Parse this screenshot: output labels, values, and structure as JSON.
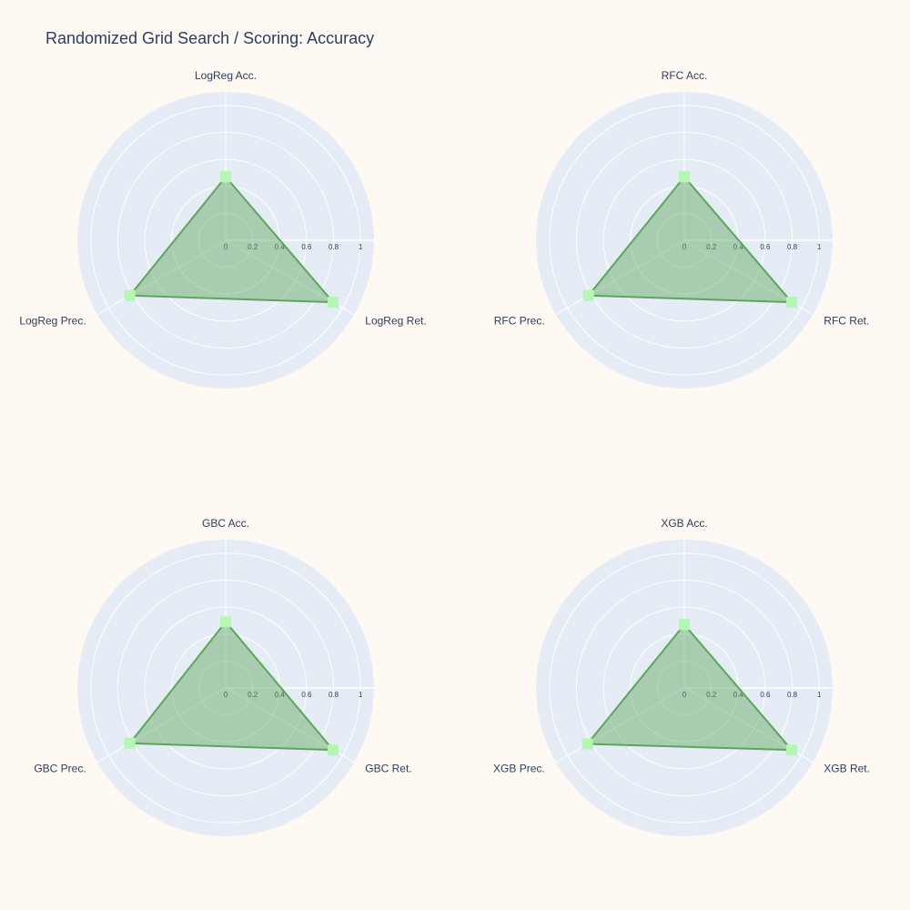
{
  "title": "Randomized Grid Search / Scoring: Accuracy",
  "colors": {
    "background": "#fff8f3",
    "polar_bg": "#e5ecf6",
    "grid": "#ffffff",
    "line": "#5aa75a",
    "fill": "rgba(90,167,90,0.45)",
    "marker": "#b3f7b3",
    "text": "#2a3f5f"
  },
  "chart_data": [
    {
      "type": "radar",
      "axes": [
        "LogReg Acc.",
        "LogReg Ret.",
        "LogReg Prec."
      ],
      "values": [
        0.47,
        0.92,
        0.82
      ],
      "radial_ticks": [
        "0",
        "0.2",
        "0.4",
        "0.6",
        "0.8",
        "1"
      ],
      "radial_range": [
        0,
        1.1
      ],
      "marker": "square"
    },
    {
      "type": "radar",
      "axes": [
        "RFC Acc.",
        "RFC Ret.",
        "RFC Prec."
      ],
      "values": [
        0.47,
        0.92,
        0.82
      ],
      "radial_ticks": [
        "0",
        "0.2",
        "0.4",
        "0.6",
        "0.8",
        "1"
      ],
      "radial_range": [
        0,
        1.1
      ],
      "marker": "square"
    },
    {
      "type": "radar",
      "axes": [
        "GBC Acc.",
        "GBC Ret.",
        "GBC Prec."
      ],
      "values": [
        0.49,
        0.92,
        0.82
      ],
      "radial_ticks": [
        "0",
        "0.2",
        "0.4",
        "0.6",
        "0.8",
        "1"
      ],
      "radial_range": [
        0,
        1.1
      ],
      "marker": "square"
    },
    {
      "type": "radar",
      "axes": [
        "XGB Acc.",
        "XGB Ret.",
        "XGB Prec."
      ],
      "values": [
        0.47,
        0.92,
        0.83
      ],
      "radial_ticks": [
        "0",
        "0.2",
        "0.4",
        "0.6",
        "0.8",
        "1"
      ],
      "radial_range": [
        0,
        1.1
      ],
      "marker": "square"
    }
  ]
}
